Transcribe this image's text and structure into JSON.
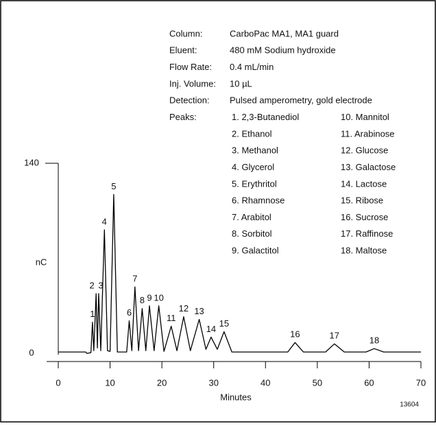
{
  "chart_data": {
    "type": "line",
    "xlabel": "Minutes",
    "ylabel": "nC",
    "footnote": "13604",
    "color": "#000000",
    "x": [
      0,
      5.3,
      5.5,
      6.3,
      6.6,
      6.85,
      7.3,
      7.55,
      7.8,
      8.2,
      8.9,
      9.5,
      10.0,
      10.7,
      11.4,
      13.2,
      13.7,
      14.2,
      14.8,
      15.5,
      16.2,
      16.9,
      17.6,
      18.5,
      19.4,
      20.4,
      21.8,
      22.9,
      24.2,
      25.5,
      27.2,
      28.5,
      29.5,
      30.7,
      32,
      33.5,
      44.3,
      45.7,
      47.3,
      51.6,
      53.3,
      55.2,
      59.4,
      61,
      62.8,
      70
    ],
    "values": [
      1,
      1,
      0,
      0.5,
      23,
      2,
      44,
      4,
      44,
      2,
      91,
      2,
      1.5,
      117,
      1,
      1,
      24,
      2,
      49,
      2,
      33,
      2,
      35,
      2,
      35,
      1.5,
      20,
      2,
      27,
      2,
      25,
      3,
      12,
      3,
      16,
      1,
      1,
      8,
      1,
      1,
      7,
      1,
      1,
      3.5,
      1,
      1
    ],
    "peak_labels": [
      "1",
      "2",
      "3",
      "4",
      "5",
      "6",
      "7",
      "8",
      "9",
      "10",
      "11",
      "12",
      "13",
      "14",
      "15",
      "16",
      "17",
      "18"
    ],
    "xlim": [
      0,
      70
    ],
    "xticks": [
      0,
      10,
      20,
      30,
      40,
      50,
      60,
      70
    ],
    "ylim": [
      -6,
      140
    ],
    "yticks": [
      0,
      140
    ],
    "info": [
      {
        "label": "Column:",
        "value": "CarboPac MA1, MA1 guard"
      },
      {
        "label": "Eluent:",
        "value": "480 mM Sodium hydroxide"
      },
      {
        "label": "Flow Rate:",
        "value": "0.4 mL/min"
      },
      {
        "label": "Inj. Volume:",
        "value": "10 µL"
      },
      {
        "label": "Detection:",
        "value": "Pulsed amperometry, gold electrode"
      },
      {
        "label": "Peaks:",
        "value": ""
      }
    ],
    "peak_names": [
      "1. 2,3-Butanediol",
      "2. Ethanol",
      "3. Methanol",
      "4. Glycerol",
      "5. Erythritol",
      "6. Rhamnose",
      "7. Arabitol",
      "8. Sorbitol",
      "9. Galactitol",
      "10. Mannitol",
      "11. Arabinose",
      "12. Glucose",
      "13. Galactose",
      "14. Lactose",
      "15. Ribose",
      "16. Sucrose",
      "17. Raffinose",
      "18. Maltose"
    ]
  }
}
